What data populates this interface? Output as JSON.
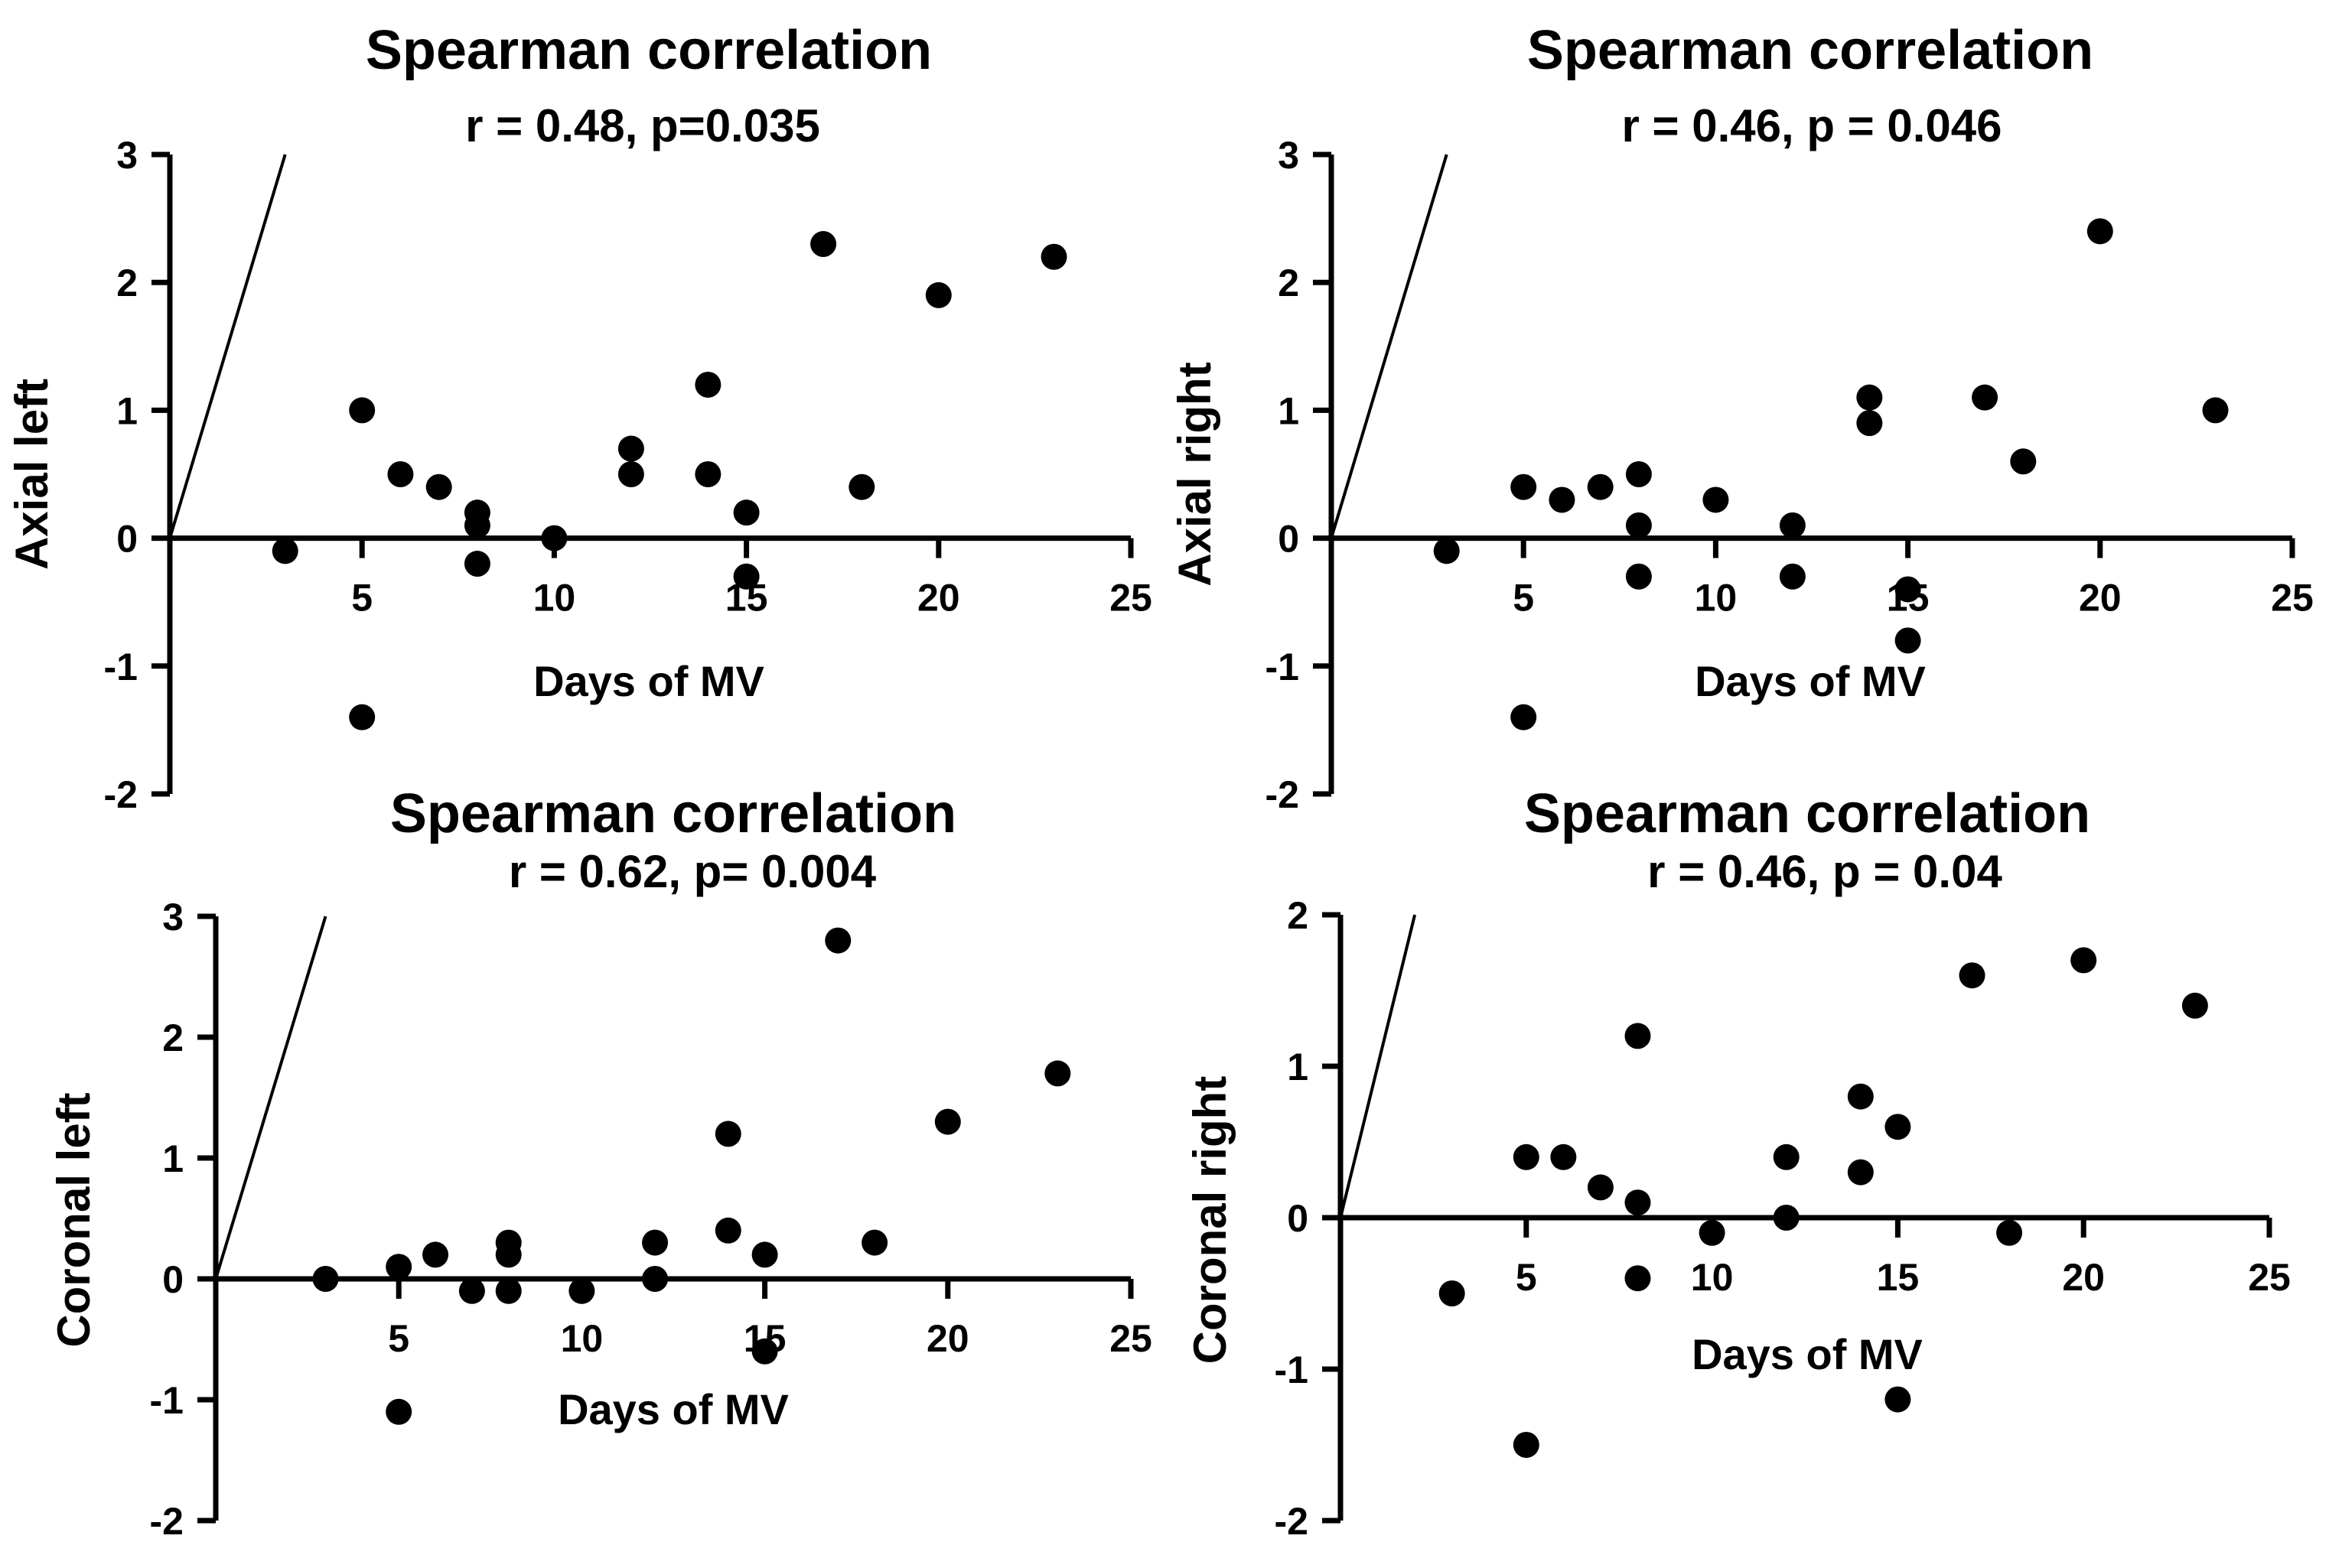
{
  "figure": {
    "panels": [
      {
        "title": "Spearman correlation",
        "stat": "r = 0.48, p=0.035"
      },
      {
        "title": "Spearman correlation",
        "stat": "r = 0.46, p = 0.046"
      },
      {
        "title": "Spearman correlation",
        "stat": "r = 0.62, p= 0.004"
      },
      {
        "title": "Spearman correlation",
        "stat": "r = 0.46, p = 0.04"
      }
    ]
  },
  "chart_data": [
    {
      "type": "scatter",
      "title": "Spearman correlation",
      "subtitle": "r = 0.48, p=0.035",
      "xlabel": "Days of MV",
      "ylabel": "Axial left",
      "xlim": [
        0,
        25
      ],
      "ylim": [
        -2,
        3
      ],
      "xticks": [
        5,
        10,
        15,
        20,
        25
      ],
      "yticks": [
        -2,
        -1,
        0,
        1,
        2,
        3
      ],
      "reference_line": {
        "from": [
          0,
          0
        ],
        "to": [
          3,
          3
        ]
      },
      "x": [
        3,
        5,
        5,
        6,
        7,
        8,
        8,
        8,
        10,
        12,
        12,
        14,
        14,
        15,
        15,
        17,
        18,
        20,
        23
      ],
      "y": [
        -0.1,
        1.0,
        -1.4,
        0.5,
        0.4,
        0.2,
        0.1,
        -0.2,
        0.0,
        0.7,
        0.5,
        1.2,
        0.5,
        0.2,
        -0.3,
        2.3,
        0.4,
        1.9,
        2.2
      ]
    },
    {
      "type": "scatter",
      "title": "Spearman correlation",
      "subtitle": "r = 0.46, p = 0.046",
      "xlabel": "Days of MV",
      "ylabel": "Axial right",
      "xlim": [
        0,
        25
      ],
      "ylim": [
        -2,
        3
      ],
      "xticks": [
        5,
        10,
        15,
        20,
        25
      ],
      "yticks": [
        -2,
        -1,
        0,
        1,
        2,
        3
      ],
      "reference_line": {
        "from": [
          0,
          0
        ],
        "to": [
          3,
          3
        ]
      },
      "x": [
        3,
        5,
        5,
        6,
        7,
        8,
        8,
        8,
        10,
        12,
        12,
        14,
        14,
        15,
        15,
        17,
        18,
        20,
        23
      ],
      "y": [
        -0.1,
        0.4,
        -1.4,
        0.3,
        0.4,
        0.5,
        0.1,
        -0.3,
        0.3,
        0.1,
        -0.3,
        1.1,
        0.9,
        -0.4,
        -0.8,
        1.1,
        0.6,
        2.4,
        1.0
      ]
    },
    {
      "type": "scatter",
      "title": "Spearman correlation",
      "subtitle": "r = 0.62, p= 0.004",
      "xlabel": "Days of MV",
      "ylabel": "Coronal left",
      "xlim": [
        0,
        25
      ],
      "ylim": [
        -2,
        3
      ],
      "xticks": [
        5,
        10,
        15,
        20,
        25
      ],
      "yticks": [
        -2,
        -1,
        0,
        1,
        2,
        3
      ],
      "reference_line": {
        "from": [
          0,
          0
        ],
        "to": [
          3,
          3
        ]
      },
      "x": [
        3,
        5,
        5,
        6,
        7,
        8,
        8,
        8,
        10,
        12,
        12,
        14,
        14,
        15,
        15,
        17,
        18,
        20,
        23
      ],
      "y": [
        0.0,
        0.1,
        -1.1,
        0.2,
        -0.1,
        0.3,
        0.2,
        -0.1,
        -0.1,
        0.3,
        0.0,
        1.2,
        0.4,
        0.2,
        -0.6,
        2.8,
        0.3,
        1.3,
        1.7
      ]
    },
    {
      "type": "scatter",
      "title": "Spearman correlation",
      "subtitle": "r = 0.46, p = 0.04",
      "xlabel": "Days of MV",
      "ylabel": "Coronal right",
      "xlim": [
        0,
        25
      ],
      "ylim": [
        -2,
        2
      ],
      "xticks": [
        5,
        10,
        15,
        20,
        25
      ],
      "yticks": [
        -2,
        -1,
        0,
        1,
        2
      ],
      "reference_line": {
        "from": [
          0,
          0
        ],
        "to": [
          2,
          2
        ]
      },
      "x": [
        3,
        5,
        5,
        6,
        7,
        8,
        8,
        8,
        10,
        12,
        12,
        14,
        14,
        15,
        15,
        17,
        18,
        20,
        23
      ],
      "y": [
        -0.5,
        0.4,
        -1.5,
        0.4,
        0.2,
        1.2,
        0.1,
        -0.4,
        -0.1,
        0.4,
        0.0,
        0.8,
        0.3,
        0.6,
        -1.2,
        1.6,
        -0.1,
        1.7,
        1.4
      ]
    }
  ]
}
